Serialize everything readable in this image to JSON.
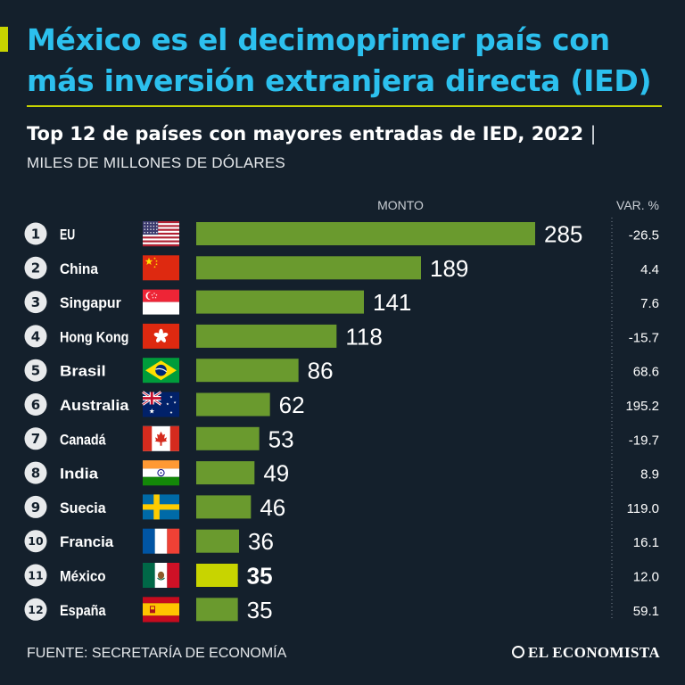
{
  "header": {
    "title": "México es el decimoprimer país con más inversión extranjera directa (IED)",
    "subtitle": "Top 12 de países con mayores entradas de IED, 2022",
    "subtitle_separator": "|",
    "units": "MILES DE MILLONES DE DÓLARES"
  },
  "footer": {
    "source": "FUENTE: SECRETARÍA DE ECONOMÍA",
    "brand": "EL ECONOMISTA"
  },
  "colors": {
    "background": "#14202c",
    "title": "#2cc0ee",
    "accent": "#c8d400",
    "bar": "#6a9a2e",
    "bar_highlight": "#c8d400",
    "rank_circle": "#e8eaec"
  },
  "chart_data": {
    "type": "bar",
    "orientation": "horizontal",
    "value_header": "MONTO",
    "change_header": "VAR. %",
    "xlim": [
      0,
      285
    ],
    "highlight_index": 10,
    "rows": [
      {
        "rank": "1",
        "country": "EU",
        "flag": "us-flag-icon",
        "value": 285,
        "label": "285",
        "change": "-26.5"
      },
      {
        "rank": "2",
        "country": "China",
        "flag": "china-flag-icon",
        "value": 189,
        "label": "189",
        "change": "4.4"
      },
      {
        "rank": "3",
        "country": "Singapur",
        "flag": "singapore-flag-icon",
        "value": 141,
        "label": "141",
        "change": "7.6"
      },
      {
        "rank": "4",
        "country": "Hong Kong",
        "flag": "hong-kong-flag-icon",
        "value": 118,
        "label": "118",
        "change": "-15.7"
      },
      {
        "rank": "5",
        "country": "Brasil",
        "flag": "brazil-flag-icon",
        "value": 86,
        "label": "86",
        "change": "68.6"
      },
      {
        "rank": "6",
        "country": "Australia",
        "flag": "australia-flag-icon",
        "value": 62,
        "label": "62",
        "change": "195.2"
      },
      {
        "rank": "7",
        "country": "Canadá",
        "flag": "canada-flag-icon",
        "value": 53,
        "label": "53",
        "change": "-19.7"
      },
      {
        "rank": "8",
        "country": "India",
        "flag": "india-flag-icon",
        "value": 49,
        "label": "49",
        "change": "8.9"
      },
      {
        "rank": "9",
        "country": "Suecia",
        "flag": "sweden-flag-icon",
        "value": 46,
        "label": "46",
        "change": "119.0"
      },
      {
        "rank": "10",
        "country": "Francia",
        "flag": "france-flag-icon",
        "value": 36,
        "label": "36",
        "change": "16.1"
      },
      {
        "rank": "11",
        "country": "México",
        "flag": "mexico-flag-icon",
        "value": 35,
        "label": "35",
        "change": "12.0"
      },
      {
        "rank": "12",
        "country": "España",
        "flag": "spain-flag-icon",
        "value": 35,
        "label": "35",
        "change": "59.1"
      }
    ]
  }
}
